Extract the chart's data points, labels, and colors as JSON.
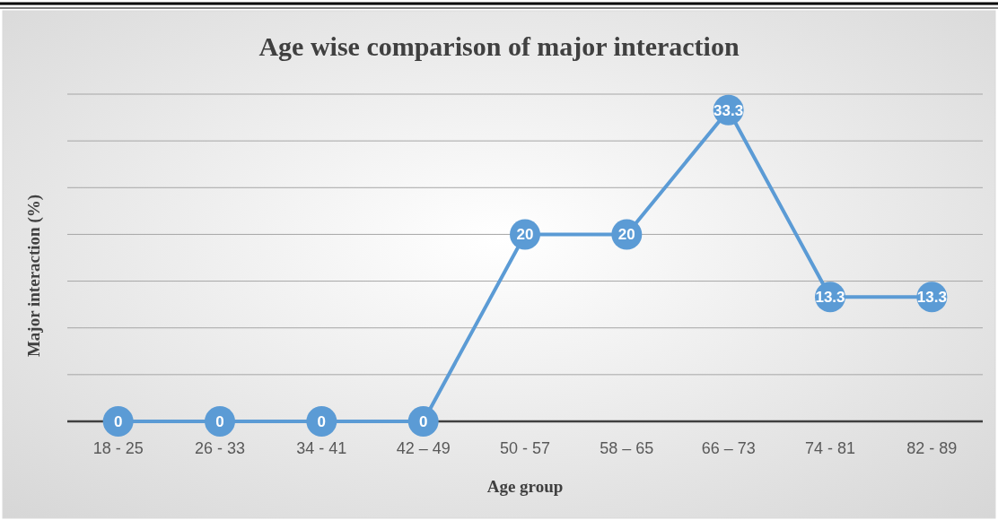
{
  "chart_data": {
    "type": "line",
    "title": "Age wise comparison of major interaction",
    "xlabel": "Age group",
    "ylabel": "Major interaction (%)",
    "categories": [
      "18 - 25",
      "26 - 33",
      "34 - 41",
      "42 – 49",
      "50 - 57",
      "58 – 65",
      "66 – 73",
      "74 - 81",
      "82 - 89"
    ],
    "series": [
      {
        "color": "#5b9bd5",
        "values": [
          0,
          0,
          0,
          0,
          20,
          20,
          33.3,
          13.3,
          13.3
        ]
      }
    ],
    "ylim": [
      0,
      35
    ],
    "yticks": [
      {
        "value": 0,
        "label": null
      },
      {
        "value": 5,
        "label": null
      },
      {
        "value": 10,
        "label": null
      },
      {
        "value": 15,
        "label": null
      },
      {
        "value": 20,
        "label": null
      },
      {
        "value": 25,
        "label": null
      },
      {
        "value": 30,
        "label": null
      },
      {
        "value": 35,
        "label": null
      }
    ],
    "tick_labels": "x",
    "grid": "y",
    "marker": "circle",
    "line_style": "solid",
    "data_labels": true
  }
}
